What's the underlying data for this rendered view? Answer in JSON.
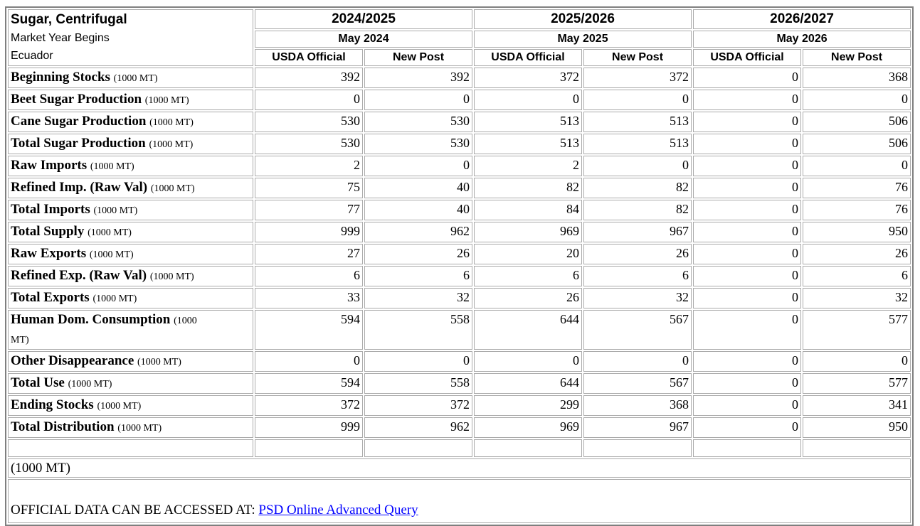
{
  "table": {
    "product": "Sugar, Centrifugal",
    "market_year_begins_label": "Market Year Begins",
    "country": "Ecuador",
    "years": [
      {
        "label": "2024/2025",
        "begins": "May 2024",
        "columns": [
          "USDA Official",
          "New Post"
        ]
      },
      {
        "label": "2025/2026",
        "begins": "May 2025",
        "columns": [
          "USDA Official",
          "New Post"
        ]
      },
      {
        "label": "2026/2027",
        "begins": "May 2026",
        "columns": [
          "USDA Official",
          "New Post"
        ]
      }
    ],
    "rows": [
      {
        "label": "Beginning Stocks",
        "unit": "(1000 MT)",
        "values": [
          "392",
          "392",
          "372",
          "372",
          "0",
          "368"
        ]
      },
      {
        "label": "Beet Sugar Production",
        "unit": "(1000 MT)",
        "values": [
          "0",
          "0",
          "0",
          "0",
          "0",
          "0"
        ]
      },
      {
        "label": "Cane Sugar Production",
        "unit": "(1000 MT)",
        "values": [
          "530",
          "530",
          "513",
          "513",
          "0",
          "506"
        ]
      },
      {
        "label": "Total Sugar Production",
        "unit": "(1000 MT)",
        "values": [
          "530",
          "530",
          "513",
          "513",
          "0",
          "506"
        ]
      },
      {
        "label": "Raw Imports",
        "unit": "(1000 MT)",
        "values": [
          "2",
          "0",
          "2",
          "0",
          "0",
          "0"
        ]
      },
      {
        "label": "Refined Imp. (Raw Val)",
        "unit": "(1000 MT)",
        "values": [
          "75",
          "40",
          "82",
          "82",
          "0",
          "76"
        ]
      },
      {
        "label": "Total Imports",
        "unit": "(1000 MT)",
        "values": [
          "77",
          "40",
          "84",
          "82",
          "0",
          "76"
        ]
      },
      {
        "label": "Total Supply",
        "unit": "(1000 MT)",
        "values": [
          "999",
          "962",
          "969",
          "967",
          "0",
          "950"
        ]
      },
      {
        "label": "Raw Exports",
        "unit": "(1000 MT)",
        "values": [
          "27",
          "26",
          "20",
          "26",
          "0",
          "26"
        ]
      },
      {
        "label": "Refined Exp. (Raw Val)",
        "unit": "(1000 MT)",
        "values": [
          "6",
          "6",
          "6",
          "6",
          "0",
          "6"
        ]
      },
      {
        "label": "Total Exports",
        "unit": "(1000 MT)",
        "values": [
          "33",
          "32",
          "26",
          "32",
          "0",
          "32"
        ]
      },
      {
        "label": "Human Dom. Consumption",
        "unit": "(1000 MT)",
        "values": [
          "594",
          "558",
          "644",
          "567",
          "0",
          "577"
        ]
      },
      {
        "label": "Other Disappearance",
        "unit": "(1000 MT)",
        "values": [
          "0",
          "0",
          "0",
          "0",
          "0",
          "0"
        ]
      },
      {
        "label": "Total Use",
        "unit": "(1000 MT)",
        "values": [
          "594",
          "558",
          "644",
          "567",
          "0",
          "577"
        ]
      },
      {
        "label": "Ending Stocks",
        "unit": "(1000 MT)",
        "values": [
          "372",
          "372",
          "299",
          "368",
          "0",
          "341"
        ]
      },
      {
        "label": "Total Distribution",
        "unit": "(1000 MT)",
        "values": [
          "999",
          "962",
          "969",
          "967",
          "0",
          "950"
        ]
      }
    ]
  },
  "footer": {
    "unit_note": "(1000 MT)",
    "official_text": "OFFICIAL DATA CAN BE ACCESSED AT: ",
    "link_label": "PSD Online Advanced Query",
    "link_color": "#0000ff"
  }
}
